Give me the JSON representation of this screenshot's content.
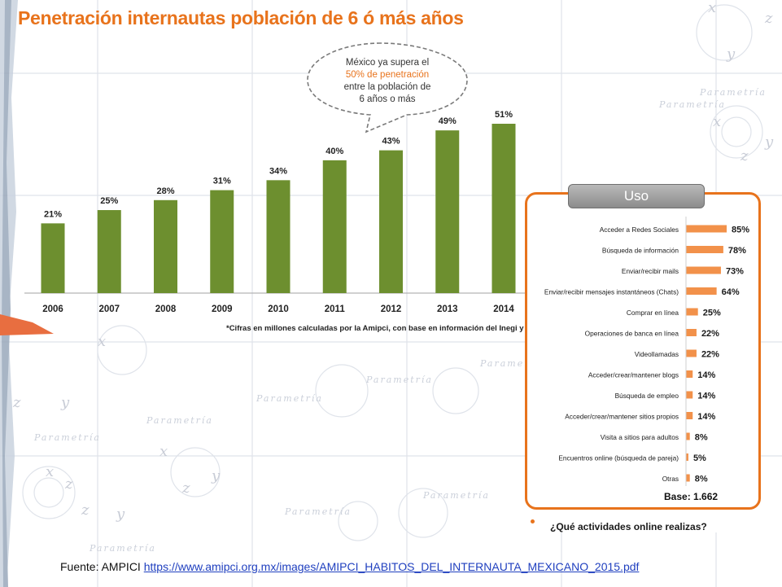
{
  "slide": {
    "title": "Penetración internautas población de 6 ó más años",
    "watermark": "Parametría",
    "footnote": "*Cifras en millones calculadas por la Amipci, con base en información del Inegi y IFETEL.",
    "callout": {
      "line1": "México ya supera el",
      "line2": "50% de penetración",
      "line3": "entre la población de",
      "line4": "6 años o más"
    },
    "uso": {
      "tab_label": "Uso",
      "base_label": "Base: 1.662",
      "question": "¿Qué actividades online realizas?"
    },
    "source": {
      "prefix": "Fuente: AMPICI ",
      "url_text": "https://www.amipci.org.mx/images/AMIPCI_HABITOS_DEL_INTERNAUTA_MEXICANO_2015.pdf"
    },
    "colors": {
      "title": "#e8731c",
      "bar_green": "#6d8f2f",
      "bar_orange": "#f2914a",
      "box_border": "#e8731c"
    }
  },
  "chart_data": [
    {
      "type": "bar",
      "categories": [
        "2006",
        "2007",
        "2008",
        "2009",
        "2010",
        "2011",
        "2012",
        "2013",
        "2014"
      ],
      "values": [
        21,
        25,
        28,
        31,
        34,
        40,
        43,
        49,
        51
      ],
      "value_labels": [
        "21%",
        "25%",
        "28%",
        "31%",
        "34%",
        "40%",
        "43%",
        "49%",
        "51%"
      ],
      "ylim": [
        0,
        55
      ],
      "grid": false,
      "orientation": "vertical"
    },
    {
      "type": "bar",
      "orientation": "horizontal",
      "categories": [
        "Acceder a Redes Sociales",
        "Búsqueda de información",
        "Enviar/recibir mails",
        "Enviar/recibir mensajes instantáneos (Chats)",
        "Comprar en línea",
        "Operaciones de banca en línea",
        "Videollamadas",
        "Acceder/crear/mantener blogs",
        "Búsqueda de empleo",
        "Acceder/crear/mantener sitios propios",
        "Visita a sitios para adultos",
        "Encuentros online (búsqueda de pareja)",
        "Otras"
      ],
      "values": [
        85,
        78,
        73,
        64,
        25,
        22,
        22,
        14,
        14,
        14,
        8,
        5,
        8
      ],
      "value_labels": [
        "85%",
        "78%",
        "73%",
        "64%",
        "25%",
        "22%",
        "22%",
        "14%",
        "14%",
        "14%",
        "8%",
        "5%",
        "8%"
      ],
      "xlim": [
        0,
        100
      ],
      "grid": false
    }
  ]
}
